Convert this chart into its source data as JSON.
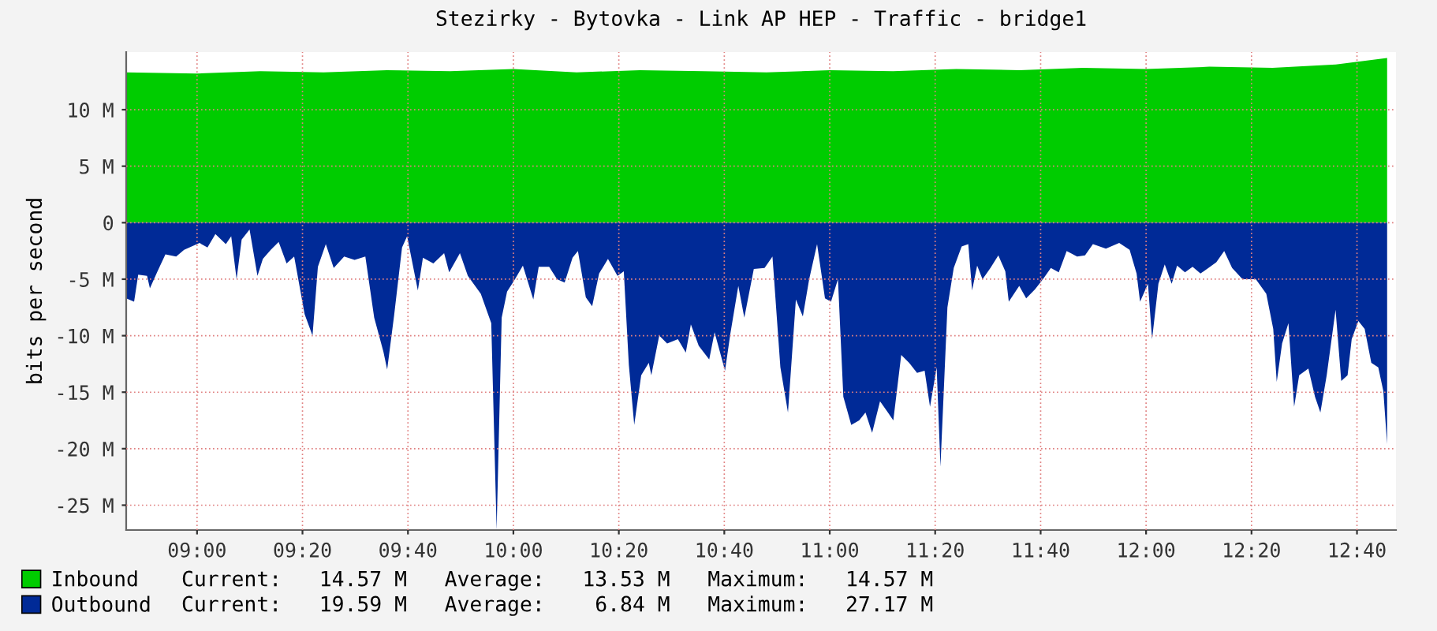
{
  "chart_data": {
    "type": "area",
    "title": "Stezirky - Bytovka - Link AP HEP - Traffic - bridge1",
    "ylabel": "bits per second",
    "xlim": [
      8.776,
      12.79
    ],
    "ylim": [
      -27.2,
      15.1
    ],
    "xticks": [
      {
        "value": 9,
        "label": "09:00"
      },
      {
        "value": 9.3333,
        "label": "09:20"
      },
      {
        "value": 9.6667,
        "label": "09:40"
      },
      {
        "value": 10,
        "label": "10:00"
      },
      {
        "value": 10.3333,
        "label": "10:20"
      },
      {
        "value": 10.6667,
        "label": "10:40"
      },
      {
        "value": 11,
        "label": "11:00"
      },
      {
        "value": 11.3333,
        "label": "11:20"
      },
      {
        "value": 11.6667,
        "label": "11:40"
      },
      {
        "value": 12,
        "label": "12:00"
      },
      {
        "value": 12.3333,
        "label": "12:20"
      },
      {
        "value": 12.6667,
        "label": "12:40"
      }
    ],
    "yticks": [
      {
        "value": 10,
        "label": "10 M"
      },
      {
        "value": 5,
        "label": "5 M"
      },
      0,
      {
        "value": -5,
        "label": "-5 M"
      },
      {
        "value": -10,
        "label": "-10 M"
      },
      {
        "value": -15,
        "label": "-15 M"
      },
      {
        "value": -20,
        "label": "-20 M"
      },
      {
        "value": -25,
        "label": "-25 M"
      }
    ],
    "grid": true,
    "legend": "bottom",
    "series": [
      {
        "name": "Inbound",
        "color": "#00cc00",
        "x": [
          8.776,
          9.0,
          9.2,
          9.4,
          9.6,
          9.8,
          10.0,
          10.2,
          10.4,
          10.6,
          10.8,
          11.0,
          11.2,
          11.4,
          11.6,
          11.8,
          12.0,
          12.2,
          12.4,
          12.6,
          12.762
        ],
        "values": [
          13.3,
          13.2,
          13.4,
          13.3,
          13.5,
          13.4,
          13.6,
          13.3,
          13.5,
          13.4,
          13.3,
          13.5,
          13.4,
          13.6,
          13.5,
          13.7,
          13.6,
          13.8,
          13.7,
          14.0,
          14.57
        ]
      },
      {
        "name": "Outbound",
        "color": "#002a97",
        "x": [
          8.776,
          8.801,
          8.814,
          8.842,
          8.851,
          8.875,
          8.9,
          8.934,
          8.959,
          9.008,
          9.033,
          9.058,
          9.091,
          9.108,
          9.125,
          9.141,
          9.166,
          9.191,
          9.208,
          9.233,
          9.258,
          9.283,
          9.307,
          9.34,
          9.365,
          9.382,
          9.407,
          9.432,
          9.465,
          9.498,
          9.532,
          9.56,
          9.589,
          9.601,
          9.623,
          9.648,
          9.664,
          9.698,
          9.714,
          9.747,
          9.781,
          9.797,
          9.831,
          9.856,
          9.897,
          9.93,
          9.947,
          9.963,
          9.98,
          10.005,
          10.03,
          10.063,
          10.08,
          10.113,
          10.138,
          10.162,
          10.187,
          10.204,
          10.229,
          10.249,
          10.271,
          10.299,
          10.329,
          10.349,
          10.365,
          10.382,
          10.404,
          10.428,
          10.436,
          10.461,
          10.486,
          10.52,
          10.545,
          10.561,
          10.586,
          10.619,
          10.636,
          10.669,
          10.686,
          10.711,
          10.73,
          10.76,
          10.794,
          10.819,
          10.844,
          10.868,
          10.893,
          10.915,
          10.935,
          10.96,
          10.985,
          11.004,
          11.026,
          11.043,
          11.068,
          11.093,
          11.113,
          11.134,
          11.159,
          11.184,
          11.201,
          11.226,
          11.251,
          11.276,
          11.3,
          11.317,
          11.338,
          11.35,
          11.372,
          11.392,
          11.417,
          11.438,
          11.45,
          11.466,
          11.483,
          11.508,
          11.533,
          11.555,
          11.566,
          11.599,
          11.621,
          11.649,
          11.674,
          11.699,
          11.724,
          11.749,
          11.782,
          11.807,
          11.832,
          11.873,
          11.915,
          11.948,
          11.97,
          11.981,
          12.006,
          12.019,
          12.039,
          12.059,
          12.081,
          12.098,
          12.123,
          12.147,
          12.172,
          12.197,
          12.222,
          12.247,
          12.272,
          12.305,
          12.347,
          12.38,
          12.402,
          12.413,
          12.43,
          12.45,
          12.468,
          12.484,
          12.513,
          12.534,
          12.551,
          12.571,
          12.599,
          12.617,
          12.637,
          12.65,
          12.671,
          12.691,
          12.712,
          12.734,
          12.75,
          12.762
        ],
        "values": [
          -6.7,
          -7.0,
          -4.6,
          -4.7,
          -5.8,
          -4.3,
          -2.8,
          -3.0,
          -2.4,
          -1.8,
          -2.2,
          -1.0,
          -1.9,
          -1.2,
          -5.0,
          -1.5,
          -0.6,
          -4.7,
          -3.2,
          -2.4,
          -1.7,
          -3.6,
          -3.0,
          -8.1,
          -10.0,
          -3.9,
          -1.9,
          -4.0,
          -3.0,
          -3.3,
          -3.0,
          -8.4,
          -11.4,
          -13.0,
          -8.2,
          -2.2,
          -1.2,
          -6.0,
          -3.1,
          -3.6,
          -2.7,
          -4.4,
          -2.7,
          -4.7,
          -6.3,
          -8.9,
          -27.17,
          -8.4,
          -6.1,
          -5.0,
          -3.8,
          -6.8,
          -3.9,
          -3.9,
          -5.0,
          -5.3,
          -3.1,
          -2.5,
          -6.6,
          -7.4,
          -4.5,
          -3.2,
          -4.7,
          -4.3,
          -12.6,
          -17.9,
          -13.5,
          -12.4,
          -13.5,
          -10.0,
          -10.7,
          -10.3,
          -11.5,
          -9.0,
          -10.9,
          -12.1,
          -9.7,
          -13.1,
          -9.8,
          -5.6,
          -8.4,
          -4.1,
          -4.0,
          -3.0,
          -12.8,
          -16.8,
          -6.8,
          -8.3,
          -5.0,
          -1.9,
          -6.7,
          -7.0,
          -5.0,
          -15.4,
          -17.9,
          -17.5,
          -16.8,
          -18.6,
          -15.8,
          -16.8,
          -17.5,
          -11.7,
          -12.4,
          -13.3,
          -13.1,
          -16.3,
          -12.8,
          -21.6,
          -7.5,
          -4.0,
          -2.1,
          -1.9,
          -6.0,
          -3.8,
          -5.0,
          -4.0,
          -2.9,
          -4.3,
          -7.0,
          -5.6,
          -6.7,
          -5.9,
          -5.0,
          -4.0,
          -4.4,
          -2.5,
          -3.0,
          -2.9,
          -1.9,
          -2.3,
          -1.8,
          -2.4,
          -4.5,
          -7.0,
          -5.4,
          -10.3,
          -5.4,
          -3.7,
          -5.4,
          -3.8,
          -4.4,
          -3.9,
          -4.5,
          -4.0,
          -3.5,
          -2.5,
          -4.0,
          -5.0,
          -5.0,
          -6.3,
          -9.4,
          -14.1,
          -10.7,
          -8.9,
          -16.3,
          -13.5,
          -12.9,
          -15.4,
          -16.8,
          -13.5,
          -7.7,
          -14.0,
          -13.5,
          -10.3,
          -8.7,
          -9.4,
          -12.4,
          -12.8,
          -14.9,
          -19.59
        ]
      }
    ],
    "annotations": [
      "Current:   14.57 M   Average:   13.53 M   Maximum:   14.57 M",
      "Current:   19.59 M   Average:    6.84 M   Maximum:   27.17 M"
    ]
  }
}
